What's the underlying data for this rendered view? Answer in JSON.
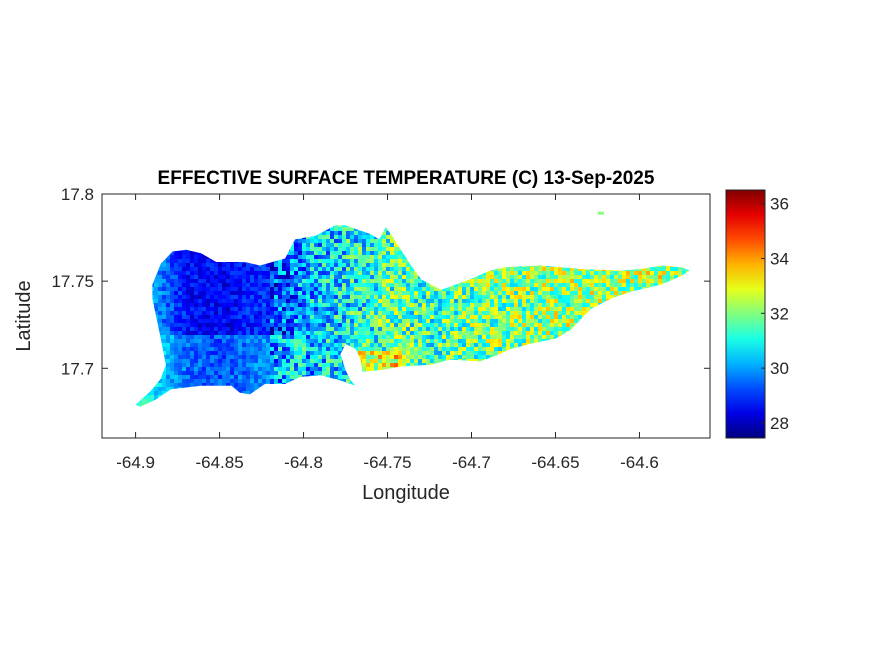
{
  "chart_data": {
    "type": "heatmap",
    "title": "EFFECTIVE SURFACE TEMPERATURE (C) 13-Sep-2025",
    "xlabel": "Longitude",
    "ylabel": "Latitude",
    "xlim": [
      -64.92,
      -64.558
    ],
    "ylim": [
      17.66,
      17.8
    ],
    "xticks": [
      -64.9,
      -64.85,
      -64.8,
      -64.75,
      -64.7,
      -64.65,
      -64.6
    ],
    "xtick_labels": [
      "-64.9",
      "-64.85",
      "-64.8",
      "-64.75",
      "-64.7",
      "-64.65",
      "-64.6"
    ],
    "yticks": [
      17.7,
      17.75,
      17.8
    ],
    "ytick_labels": [
      "17.7",
      "17.75",
      "17.8"
    ],
    "colormap": "jet",
    "clim": [
      27.45,
      36.5
    ],
    "colorbar_ticks": [
      28,
      30,
      32,
      34,
      36
    ],
    "colorbar_tick_labels": [
      "28",
      "30",
      "32",
      "34",
      "36"
    ],
    "grid": false,
    "mean_profile_by_longitude": {
      "lon": [
        -64.9,
        -64.87,
        -64.85,
        -64.82,
        -64.8,
        -64.77,
        -64.75,
        -64.72,
        -64.7,
        -64.65,
        -64.6,
        -64.57
      ],
      "temp": [
        30.5,
        28.6,
        28.4,
        29.0,
        29.8,
        30.5,
        31.2,
        31.0,
        31.4,
        31.8,
        31.9,
        32.0
      ]
    },
    "island_outline": [
      [
        -64.9,
        17.679
      ],
      [
        -64.891,
        17.687
      ],
      [
        -64.885,
        17.694
      ],
      [
        -64.882,
        17.702
      ],
      [
        -64.885,
        17.717
      ],
      [
        -64.89,
        17.74
      ],
      [
        -64.89,
        17.748
      ],
      [
        -64.885,
        17.76
      ],
      [
        -64.878,
        17.767
      ],
      [
        -64.87,
        17.768
      ],
      [
        -64.861,
        17.766
      ],
      [
        -64.852,
        17.761
      ],
      [
        -64.835,
        17.761
      ],
      [
        -64.826,
        17.759
      ],
      [
        -64.811,
        17.763
      ],
      [
        -64.805,
        17.774
      ],
      [
        -64.793,
        17.776
      ],
      [
        -64.781,
        17.782
      ],
      [
        -64.775,
        17.782
      ],
      [
        -64.769,
        17.78
      ],
      [
        -64.76,
        17.777
      ],
      [
        -64.755,
        17.774
      ],
      [
        -64.751,
        17.781
      ],
      [
        -64.748,
        17.777
      ],
      [
        -64.742,
        17.768
      ],
      [
        -64.736,
        17.759
      ],
      [
        -64.73,
        17.751
      ],
      [
        -64.718,
        17.745
      ],
      [
        -64.701,
        17.751
      ],
      [
        -64.689,
        17.756
      ],
      [
        -64.68,
        17.758
      ],
      [
        -64.659,
        17.759
      ],
      [
        -64.635,
        17.757
      ],
      [
        -64.611,
        17.756
      ],
      [
        -64.599,
        17.757
      ],
      [
        -64.587,
        17.759
      ],
      [
        -64.575,
        17.758
      ],
      [
        -64.57,
        17.756
      ],
      [
        -64.575,
        17.753
      ],
      [
        -64.587,
        17.748
      ],
      [
        -64.605,
        17.744
      ],
      [
        -64.617,
        17.74
      ],
      [
        -64.629,
        17.734
      ],
      [
        -64.641,
        17.722
      ],
      [
        -64.65,
        17.717
      ],
      [
        -64.665,
        17.714
      ],
      [
        -64.677,
        17.711
      ],
      [
        -64.686,
        17.707
      ],
      [
        -64.695,
        17.704
      ],
      [
        -64.713,
        17.705
      ],
      [
        -64.724,
        17.702
      ],
      [
        -64.742,
        17.701
      ],
      [
        -64.754,
        17.699
      ],
      [
        -64.765,
        17.698
      ],
      [
        -64.766,
        17.705
      ],
      [
        -64.769,
        17.711
      ],
      [
        -64.775,
        17.714
      ],
      [
        -64.778,
        17.708
      ],
      [
        -64.775,
        17.699
      ],
      [
        -64.772,
        17.693
      ],
      [
        -64.769,
        17.69
      ],
      [
        -64.778,
        17.693
      ],
      [
        -64.79,
        17.696
      ],
      [
        -64.802,
        17.695
      ],
      [
        -64.811,
        17.691
      ],
      [
        -64.823,
        17.691
      ],
      [
        -64.832,
        17.685
      ],
      [
        -64.838,
        17.686
      ],
      [
        -64.843,
        17.69
      ],
      [
        -64.861,
        17.69
      ],
      [
        -64.879,
        17.688
      ],
      [
        -64.888,
        17.682
      ],
      [
        -64.897,
        17.678
      ]
    ],
    "islet": [
      -64.623,
      17.789
    ]
  }
}
